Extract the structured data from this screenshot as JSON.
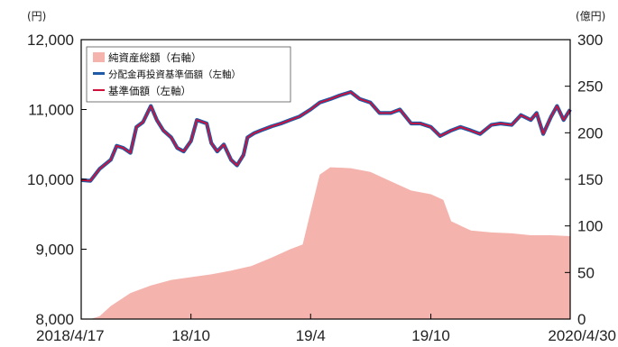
{
  "chart_data": {
    "type": "line",
    "title": "",
    "left_axis": {
      "unit": "(円)",
      "min": 8000,
      "max": 12000,
      "ticks": [
        "8,000",
        "9,000",
        "10,000",
        "11,000",
        "12,000"
      ],
      "tick_values": [
        8000,
        9000,
        10000,
        11000,
        12000
      ]
    },
    "right_axis": {
      "unit": "(億円)",
      "min": 0,
      "max": 300,
      "ticks": [
        "0",
        "50",
        "100",
        "150",
        "200",
        "250",
        "300"
      ],
      "tick_values": [
        0,
        50,
        100,
        150,
        200,
        250,
        300
      ]
    },
    "x_ticks": [
      {
        "label": "2018/4/17",
        "date": "2018-04-17"
      },
      {
        "label": "18/10",
        "date": "2018-10-01"
      },
      {
        "label": "19/4",
        "date": "2019-04-01"
      },
      {
        "label": "19/10",
        "date": "2019-10-01"
      },
      {
        "label": "2020/4/30",
        "date": "2020-04-30"
      }
    ],
    "x_range": [
      "2018-04-17",
      "2020-04-30"
    ],
    "grid": false,
    "legend_placement": "top-left",
    "legend": [
      {
        "name": "純資産総額（右軸）",
        "kind": "area",
        "color": "#f4b3ad"
      },
      {
        "name": "分配金再投資基準価額（左軸）",
        "kind": "line",
        "color": "#1f5aa6"
      },
      {
        "name": "基準価額（左軸）",
        "kind": "line",
        "color": "#d0103a"
      }
    ],
    "series": [
      {
        "name": "分配金再投資基準価額（左軸）",
        "axis": "left",
        "x": [
          "2018-04-17",
          "2018-05-01",
          "2018-05-15",
          "2018-06-01",
          "2018-06-10",
          "2018-06-20",
          "2018-07-01",
          "2018-07-10",
          "2018-07-20",
          "2018-08-01",
          "2018-08-10",
          "2018-08-20",
          "2018-09-01",
          "2018-09-10",
          "2018-09-20",
          "2018-10-01",
          "2018-10-10",
          "2018-10-25",
          "2018-11-01",
          "2018-11-10",
          "2018-11-20",
          "2018-12-01",
          "2018-12-10",
          "2018-12-20",
          "2018-12-26",
          "2019-01-05",
          "2019-01-15",
          "2019-02-01",
          "2019-02-15",
          "2019-03-01",
          "2019-03-15",
          "2019-04-01",
          "2019-04-15",
          "2019-05-01",
          "2019-05-15",
          "2019-06-01",
          "2019-06-15",
          "2019-07-01",
          "2019-07-15",
          "2019-08-01",
          "2019-08-15",
          "2019-09-01",
          "2019-09-15",
          "2019-10-01",
          "2019-10-15",
          "2019-11-01",
          "2019-11-15",
          "2019-12-01",
          "2019-12-15",
          "2020-01-01",
          "2020-01-15",
          "2020-02-01",
          "2020-02-15",
          "2020-03-01",
          "2020-03-10",
          "2020-03-20",
          "2020-04-01",
          "2020-04-10",
          "2020-04-20",
          "2020-04-30"
        ],
        "y": [
          9990,
          9980,
          10150,
          10280,
          10480,
          10450,
          10380,
          10750,
          10820,
          11050,
          10850,
          10700,
          10600,
          10450,
          10400,
          10550,
          10850,
          10800,
          10520,
          10400,
          10500,
          10280,
          10200,
          10350,
          10600,
          10660,
          10700,
          10760,
          10800,
          10850,
          10900,
          11000,
          11100,
          11150,
          11200,
          11250,
          11150,
          11100,
          10950,
          10950,
          11000,
          10800,
          10800,
          10750,
          10620,
          10700,
          10750,
          10700,
          10650,
          10780,
          10800,
          10780,
          10920,
          10850,
          10950,
          10650,
          10900,
          11050,
          10850,
          11000
        ],
        "color": "#1f5aa6"
      },
      {
        "name": "基準価額（左軸）",
        "axis": "left",
        "x": [
          "2018-04-17",
          "2018-05-01",
          "2018-05-15",
          "2018-06-01",
          "2018-06-10",
          "2018-06-20",
          "2018-07-01",
          "2018-07-10",
          "2018-07-20",
          "2018-08-01",
          "2018-08-10",
          "2018-08-20",
          "2018-09-01",
          "2018-09-10",
          "2018-09-20",
          "2018-10-01",
          "2018-10-10",
          "2018-10-25",
          "2018-11-01",
          "2018-11-10",
          "2018-11-20",
          "2018-12-01",
          "2018-12-10",
          "2018-12-20",
          "2018-12-26",
          "2019-01-05",
          "2019-01-15",
          "2019-02-01",
          "2019-02-15",
          "2019-03-01",
          "2019-03-15",
          "2019-04-01",
          "2019-04-15",
          "2019-05-01",
          "2019-05-15",
          "2019-06-01",
          "2019-06-15",
          "2019-07-01",
          "2019-07-15",
          "2019-08-01",
          "2019-08-15",
          "2019-09-01",
          "2019-09-15",
          "2019-10-01",
          "2019-10-15",
          "2019-11-01",
          "2019-11-15",
          "2019-12-01",
          "2019-12-15",
          "2020-01-01",
          "2020-01-15",
          "2020-02-01",
          "2020-02-15",
          "2020-03-01",
          "2020-03-10",
          "2020-03-20",
          "2020-04-01",
          "2020-04-10",
          "2020-04-20",
          "2020-04-30"
        ],
        "y": [
          9990,
          9980,
          10150,
          10280,
          10480,
          10450,
          10380,
          10750,
          10820,
          11050,
          10850,
          10700,
          10600,
          10450,
          10400,
          10550,
          10850,
          10800,
          10520,
          10400,
          10500,
          10280,
          10200,
          10350,
          10600,
          10660,
          10700,
          10760,
          10800,
          10850,
          10900,
          11000,
          11100,
          11150,
          11200,
          11250,
          11150,
          11100,
          10950,
          10950,
          11000,
          10800,
          10800,
          10750,
          10620,
          10700,
          10750,
          10700,
          10650,
          10780,
          10800,
          10780,
          10920,
          10850,
          10950,
          10650,
          10900,
          11050,
          10850,
          11000
        ],
        "color": "#d0103a"
      },
      {
        "name": "純資産総額（右軸）",
        "axis": "right",
        "kind": "area",
        "x": [
          "2018-04-17",
          "2018-05-01",
          "2018-05-15",
          "2018-06-01",
          "2018-07-01",
          "2018-08-01",
          "2018-09-01",
          "2018-10-01",
          "2018-11-01",
          "2018-12-01",
          "2019-01-01",
          "2019-02-01",
          "2019-03-01",
          "2019-03-20",
          "2019-04-01",
          "2019-04-15",
          "2019-05-01",
          "2019-06-01",
          "2019-07-01",
          "2019-08-01",
          "2019-09-01",
          "2019-10-01",
          "2019-10-20",
          "2019-11-01",
          "2019-12-01",
          "2020-01-01",
          "2020-02-01",
          "2020-03-01",
          "2020-04-01",
          "2020-04-30"
        ],
        "y": [
          0,
          0,
          3,
          14,
          28,
          36,
          42,
          45,
          48,
          52,
          57,
          66,
          75,
          80,
          115,
          155,
          163,
          162,
          158,
          148,
          138,
          134,
          128,
          105,
          95,
          93,
          92,
          90,
          90,
          89
        ],
        "color": "#f4b3ad"
      }
    ]
  }
}
